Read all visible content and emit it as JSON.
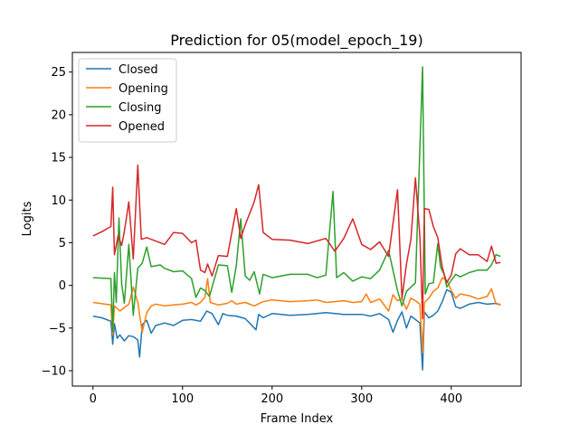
{
  "chart_data": {
    "type": "line",
    "title": "Prediction for 05(model_epoch_19)",
    "xlabel": "Frame Index",
    "ylabel": "Logits",
    "xlim": [
      -23,
      478
    ],
    "ylim": [
      -11.8,
      27.3
    ],
    "xticks": [
      0,
      100,
      200,
      300,
      400
    ],
    "yticks": [
      -10,
      -5,
      0,
      5,
      10,
      15,
      20,
      25
    ],
    "grid": false,
    "legend_position": "top-left",
    "series": [
      {
        "name": "Closed",
        "color": "#1f77b4",
        "points": [
          [
            0,
            -3.6
          ],
          [
            10,
            -3.8
          ],
          [
            20,
            -4.2
          ],
          [
            22,
            -6.9
          ],
          [
            24,
            -4.5
          ],
          [
            27,
            -6.2
          ],
          [
            30,
            -5.8
          ],
          [
            35,
            -6.5
          ],
          [
            40,
            -5.9
          ],
          [
            45,
            -6.0
          ],
          [
            50,
            -6.4
          ],
          [
            52,
            -8.4
          ],
          [
            55,
            -4.6
          ],
          [
            60,
            -4.1
          ],
          [
            65,
            -5.6
          ],
          [
            70,
            -4.7
          ],
          [
            80,
            -4.4
          ],
          [
            90,
            -4.7
          ],
          [
            100,
            -4.1
          ],
          [
            110,
            -4.0
          ],
          [
            120,
            -4.2
          ],
          [
            127,
            -3.0
          ],
          [
            133,
            -3.3
          ],
          [
            140,
            -4.6
          ],
          [
            145,
            -3.3
          ],
          [
            150,
            -3.5
          ],
          [
            160,
            -3.6
          ],
          [
            170,
            -3.9
          ],
          [
            182,
            -5.2
          ],
          [
            185,
            -3.4
          ],
          [
            190,
            -3.8
          ],
          [
            200,
            -3.3
          ],
          [
            220,
            -3.5
          ],
          [
            240,
            -3.4
          ],
          [
            260,
            -3.2
          ],
          [
            280,
            -3.4
          ],
          [
            300,
            -3.4
          ],
          [
            310,
            -3.6
          ],
          [
            320,
            -3.3
          ],
          [
            330,
            -4.0
          ],
          [
            335,
            -5.5
          ],
          [
            340,
            -4.1
          ],
          [
            345,
            -3.1
          ],
          [
            350,
            -5.0
          ],
          [
            355,
            -3.6
          ],
          [
            360,
            -4.0
          ],
          [
            365,
            -4.4
          ],
          [
            368,
            -9.9
          ],
          [
            370,
            -3.1
          ],
          [
            375,
            -3.8
          ],
          [
            380,
            -3.5
          ],
          [
            385,
            -3.0
          ],
          [
            390,
            -1.9
          ],
          [
            395,
            -0.5
          ],
          [
            400,
            -0.8
          ],
          [
            405,
            -2.5
          ],
          [
            410,
            -2.7
          ],
          [
            420,
            -2.2
          ],
          [
            430,
            -2.0
          ],
          [
            440,
            -2.2
          ],
          [
            450,
            -2.1
          ],
          [
            455,
            -2.3
          ]
        ]
      },
      {
        "name": "Opening",
        "color": "#ff7f0e",
        "points": [
          [
            0,
            -2.0
          ],
          [
            20,
            -2.3
          ],
          [
            22,
            -5.8
          ],
          [
            24,
            -2.4
          ],
          [
            30,
            -3.0
          ],
          [
            40,
            -2.2
          ],
          [
            45,
            -0.2
          ],
          [
            50,
            -2.0
          ],
          [
            55,
            -5.5
          ],
          [
            60,
            -3.2
          ],
          [
            65,
            -2.4
          ],
          [
            70,
            -2.2
          ],
          [
            80,
            -2.4
          ],
          [
            90,
            -2.3
          ],
          [
            100,
            -2.2
          ],
          [
            110,
            -2.0
          ],
          [
            115,
            -2.3
          ],
          [
            120,
            -2.0
          ],
          [
            125,
            -1.4
          ],
          [
            128,
            0.8
          ],
          [
            131,
            -2.0
          ],
          [
            140,
            -2.3
          ],
          [
            150,
            -2.1
          ],
          [
            155,
            -1.8
          ],
          [
            160,
            -2.2
          ],
          [
            170,
            -2.0
          ],
          [
            180,
            -2.4
          ],
          [
            190,
            -1.9
          ],
          [
            200,
            -1.7
          ],
          [
            220,
            -1.9
          ],
          [
            240,
            -1.8
          ],
          [
            250,
            -1.7
          ],
          [
            260,
            -2.0
          ],
          [
            270,
            -1.9
          ],
          [
            280,
            -1.8
          ],
          [
            290,
            -2.0
          ],
          [
            300,
            -1.9
          ],
          [
            305,
            -1.0
          ],
          [
            310,
            -2.0
          ],
          [
            320,
            -1.6
          ],
          [
            330,
            -3.0
          ],
          [
            335,
            -1.1
          ],
          [
            340,
            -1.8
          ],
          [
            345,
            -1.6
          ],
          [
            350,
            -2.8
          ],
          [
            355,
            -1.5
          ],
          [
            360,
            -1.8
          ],
          [
            365,
            -2.2
          ],
          [
            368,
            -7.9
          ],
          [
            370,
            -2.0
          ],
          [
            375,
            -1.5
          ],
          [
            380,
            -0.7
          ],
          [
            385,
            -0.3
          ],
          [
            390,
            0.9
          ],
          [
            395,
            0.6
          ],
          [
            400,
            -0.6
          ],
          [
            405,
            -1.5
          ],
          [
            410,
            -1.0
          ],
          [
            420,
            -1.2
          ],
          [
            430,
            -1.6
          ],
          [
            440,
            -1.3
          ],
          [
            445,
            -0.4
          ],
          [
            450,
            -2.2
          ],
          [
            455,
            -2.2
          ]
        ]
      },
      {
        "name": "Closing",
        "color": "#2ca02c",
        "points": [
          [
            0,
            0.9
          ],
          [
            10,
            0.85
          ],
          [
            20,
            0.8
          ],
          [
            22,
            -5.4
          ],
          [
            24,
            1.5
          ],
          [
            26,
            -2.0
          ],
          [
            29,
            7.9
          ],
          [
            32,
            0.2
          ],
          [
            35,
            -2.1
          ],
          [
            40,
            4.8
          ],
          [
            45,
            -3.5
          ],
          [
            50,
            2.0
          ],
          [
            55,
            2.6
          ],
          [
            60,
            4.5
          ],
          [
            65,
            2.2
          ],
          [
            75,
            2.4
          ],
          [
            80,
            2.0
          ],
          [
            90,
            1.6
          ],
          [
            100,
            1.7
          ],
          [
            110,
            0.8
          ],
          [
            115,
            -1.4
          ],
          [
            120,
            -0.3
          ],
          [
            125,
            -0.6
          ],
          [
            130,
            -1.3
          ],
          [
            140,
            2.4
          ],
          [
            150,
            2.3
          ],
          [
            155,
            -0.8
          ],
          [
            160,
            2.3
          ],
          [
            165,
            7.8
          ],
          [
            170,
            1.1
          ],
          [
            175,
            0.6
          ],
          [
            180,
            1.6
          ],
          [
            186,
            -1.0
          ],
          [
            190,
            1.3
          ],
          [
            200,
            0.9
          ],
          [
            220,
            1.3
          ],
          [
            240,
            1.3
          ],
          [
            250,
            0.9
          ],
          [
            260,
            1.2
          ],
          [
            268,
            11.0
          ],
          [
            272,
            0.9
          ],
          [
            280,
            1.5
          ],
          [
            290,
            0.5
          ],
          [
            300,
            1.0
          ],
          [
            310,
            0.8
          ],
          [
            320,
            1.8
          ],
          [
            330,
            4.1
          ],
          [
            340,
            -0.6
          ],
          [
            345,
            -2.4
          ],
          [
            350,
            -0.7
          ],
          [
            360,
            0.3
          ],
          [
            368,
            25.6
          ],
          [
            371,
            -1.0
          ],
          [
            375,
            0.2
          ],
          [
            380,
            0.3
          ],
          [
            385,
            4.9
          ],
          [
            388,
            2.2
          ],
          [
            392,
            1.3
          ],
          [
            395,
            -0.2
          ],
          [
            400,
            0.6
          ],
          [
            405,
            1.3
          ],
          [
            410,
            1.0
          ],
          [
            420,
            1.5
          ],
          [
            430,
            1.8
          ],
          [
            440,
            1.8
          ],
          [
            445,
            2.4
          ],
          [
            450,
            3.6
          ],
          [
            455,
            3.4
          ]
        ]
      },
      {
        "name": "Opened",
        "color": "#d62728",
        "points": [
          [
            0,
            5.8
          ],
          [
            10,
            6.3
          ],
          [
            20,
            6.9
          ],
          [
            22,
            11.5
          ],
          [
            24,
            3.6
          ],
          [
            28,
            5.8
          ],
          [
            32,
            4.7
          ],
          [
            35,
            6.3
          ],
          [
            40,
            9.8
          ],
          [
            45,
            3.1
          ],
          [
            50,
            14.1
          ],
          [
            54,
            5.4
          ],
          [
            60,
            5.6
          ],
          [
            70,
            5.2
          ],
          [
            80,
            4.8
          ],
          [
            90,
            6.2
          ],
          [
            100,
            6.1
          ],
          [
            110,
            5.0
          ],
          [
            115,
            5.3
          ],
          [
            120,
            1.8
          ],
          [
            125,
            1.5
          ],
          [
            128,
            2.5
          ],
          [
            133,
            1.1
          ],
          [
            140,
            3.5
          ],
          [
            150,
            3.4
          ],
          [
            160,
            9.0
          ],
          [
            165,
            5.5
          ],
          [
            170,
            7.1
          ],
          [
            180,
            9.8
          ],
          [
            185,
            11.8
          ],
          [
            190,
            6.2
          ],
          [
            200,
            5.4
          ],
          [
            220,
            5.3
          ],
          [
            240,
            4.9
          ],
          [
            260,
            5.5
          ],
          [
            270,
            4.0
          ],
          [
            280,
            5.5
          ],
          [
            290,
            7.8
          ],
          [
            300,
            4.8
          ],
          [
            310,
            4.2
          ],
          [
            320,
            5.1
          ],
          [
            330,
            3.4
          ],
          [
            340,
            11.2
          ],
          [
            345,
            -1.5
          ],
          [
            350,
            2.5
          ],
          [
            355,
            5.4
          ],
          [
            360,
            12.6
          ],
          [
            365,
            5.8
          ],
          [
            368,
            -3.9
          ],
          [
            370,
            9.0
          ],
          [
            375,
            8.9
          ],
          [
            380,
            6.9
          ],
          [
            385,
            5.6
          ],
          [
            390,
            2.1
          ],
          [
            395,
            0.3
          ],
          [
            400,
            1.2
          ],
          [
            405,
            3.7
          ],
          [
            410,
            4.3
          ],
          [
            420,
            3.6
          ],
          [
            430,
            3.6
          ],
          [
            440,
            2.8
          ],
          [
            445,
            4.6
          ],
          [
            450,
            2.6
          ],
          [
            455,
            2.7
          ]
        ]
      }
    ]
  }
}
